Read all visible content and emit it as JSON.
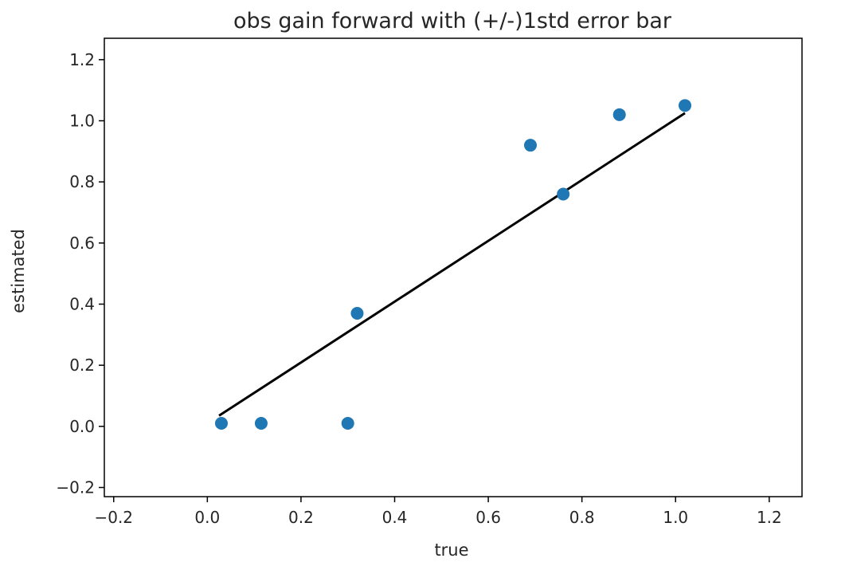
{
  "chart_data": {
    "type": "scatter",
    "title": "obs gain forward with (+/-)1std error bar",
    "xlabel": "true",
    "ylabel": "estimated",
    "xlim": [
      -0.22,
      1.27
    ],
    "ylim": [
      -0.23,
      1.27
    ],
    "xticks": [
      "−0.2",
      "0.0",
      "0.2",
      "0.4",
      "0.6",
      "0.8",
      "1.0",
      "1.2"
    ],
    "xtick_values": [
      -0.2,
      0,
      0.2,
      0.4,
      0.6,
      0.8,
      1.0,
      1.2
    ],
    "yticks": [
      "−0.2",
      "0.0",
      "0.2",
      "0.4",
      "0.6",
      "0.8",
      "1.0",
      "1.2"
    ],
    "ytick_values": [
      -0.2,
      0,
      0.2,
      0.4,
      0.6,
      0.8,
      1.0,
      1.2
    ],
    "grid": false,
    "points": {
      "color": "#1f77b4",
      "x": [
        0.03,
        0.115,
        0.3,
        0.32,
        0.69,
        0.76,
        0.88,
        1.02
      ],
      "y": [
        0.01,
        0.01,
        0.01,
        0.37,
        0.92,
        0.76,
        1.02,
        1.05
      ]
    },
    "line": {
      "color": "#000000",
      "x": [
        0.025,
        1.02
      ],
      "y": [
        0.035,
        1.025
      ]
    }
  }
}
